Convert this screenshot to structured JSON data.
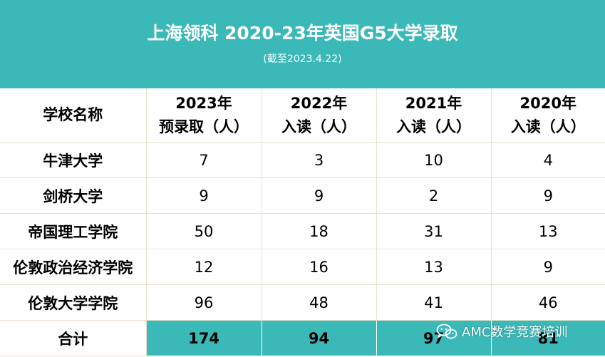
{
  "header": {
    "title": "上海领科 2020-23年英国G5大学录取",
    "subtitle": "(截至2023.4.22)"
  },
  "table": {
    "columns": [
      {
        "lines": [
          "学校名称"
        ]
      },
      {
        "lines": [
          "2023年",
          "预录取（人）"
        ]
      },
      {
        "lines": [
          "2022年",
          "入读（人）"
        ]
      },
      {
        "lines": [
          "2021年",
          "入读（人）"
        ]
      },
      {
        "lines": [
          "2020年",
          "入读（人）"
        ]
      }
    ],
    "rows": [
      {
        "school": "牛津大学",
        "values": [
          "7",
          "3",
          "10",
          "4"
        ]
      },
      {
        "school": "剑桥大学",
        "values": [
          "9",
          "9",
          "2",
          "9"
        ]
      },
      {
        "school": "帝国理工学院",
        "values": [
          "50",
          "18",
          "31",
          "13"
        ]
      },
      {
        "school": "伦敦政治经济学院",
        "values": [
          "12",
          "16",
          "13",
          "9"
        ]
      },
      {
        "school": "伦敦大学学院",
        "values": [
          "96",
          "48",
          "41",
          "46"
        ]
      }
    ],
    "total": {
      "label": "合计",
      "values": [
        "174",
        "94",
        "97",
        "81"
      ]
    }
  },
  "watermark": {
    "text": "AMC数学竞赛培训",
    "icon": "wechat-icon"
  },
  "colors": {
    "accent": "#3bb8b8",
    "grid": "#e7e1c9",
    "text": "#000000"
  }
}
